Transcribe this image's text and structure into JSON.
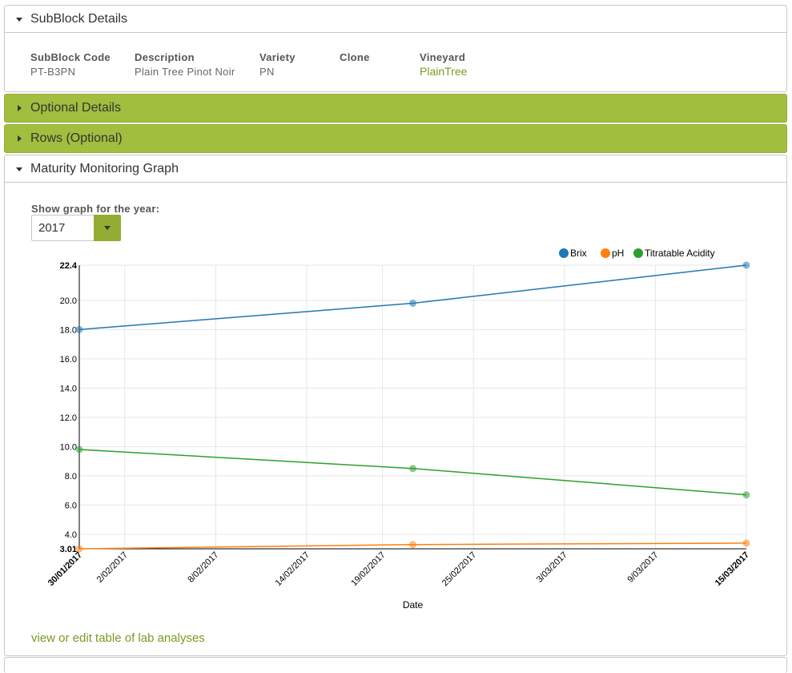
{
  "subblock": {
    "title": "SubBlock Details",
    "code_label": "SubBlock Code",
    "code_value": "PT-B3PN",
    "description_label": "Description",
    "description_value": "Plain Tree Pinot Noir",
    "variety_label": "Variety",
    "variety_value": "PN",
    "clone_label": "Clone",
    "vineyard_label": "Vineyard",
    "vineyard_value": "PlainTree"
  },
  "optional": {
    "title": "Optional Details"
  },
  "rows": {
    "title": "Rows (Optional)"
  },
  "maturity": {
    "title": "Maturity Monitoring Graph",
    "year_label": "Show graph for the year:",
    "year_value": "2017",
    "view_link": "view or edit table of lab analyses"
  },
  "colors": {
    "accent": "#a2be3e",
    "accent_dark": "#93ad34",
    "link": "#7a9a22",
    "brix": "#1f77b4",
    "ph": "#ff7f0e",
    "ta": "#2ca02c"
  },
  "chart_data": {
    "type": "line",
    "xlabel": "Date",
    "ylabel": "",
    "x_ticks": [
      "30/01/2017",
      "2/02/2017",
      "8/02/2017",
      "14/02/2017",
      "19/02/2017",
      "25/02/2017",
      "3/03/2017",
      "9/03/2017",
      "15/03/2017"
    ],
    "x_start": "30/01/2017",
    "x_end": "15/03/2017",
    "y_ticks": [
      "22.4",
      "20.0",
      "18.0",
      "16.0",
      "14.0",
      "12.0",
      "10.0",
      "8.0",
      "6.0",
      "4.0",
      "3.01"
    ],
    "ylim": [
      3.01,
      22.4
    ],
    "grid": true,
    "legend_position": "top-right",
    "series": [
      {
        "name": "Brix",
        "color": "#1f77b4",
        "x": [
          "30/01/2017",
          "21/02/2017",
          "15/03/2017"
        ],
        "y": [
          18.0,
          19.8,
          22.4
        ]
      },
      {
        "name": "pH",
        "color": "#ff7f0e",
        "x": [
          "30/01/2017",
          "21/02/2017",
          "15/03/2017"
        ],
        "y": [
          3.01,
          3.3,
          3.4
        ]
      },
      {
        "name": "Titratable Acidity",
        "color": "#2ca02c",
        "x": [
          "30/01/2017",
          "21/02/2017",
          "15/03/2017"
        ],
        "y": [
          9.8,
          8.5,
          6.7
        ]
      }
    ]
  }
}
